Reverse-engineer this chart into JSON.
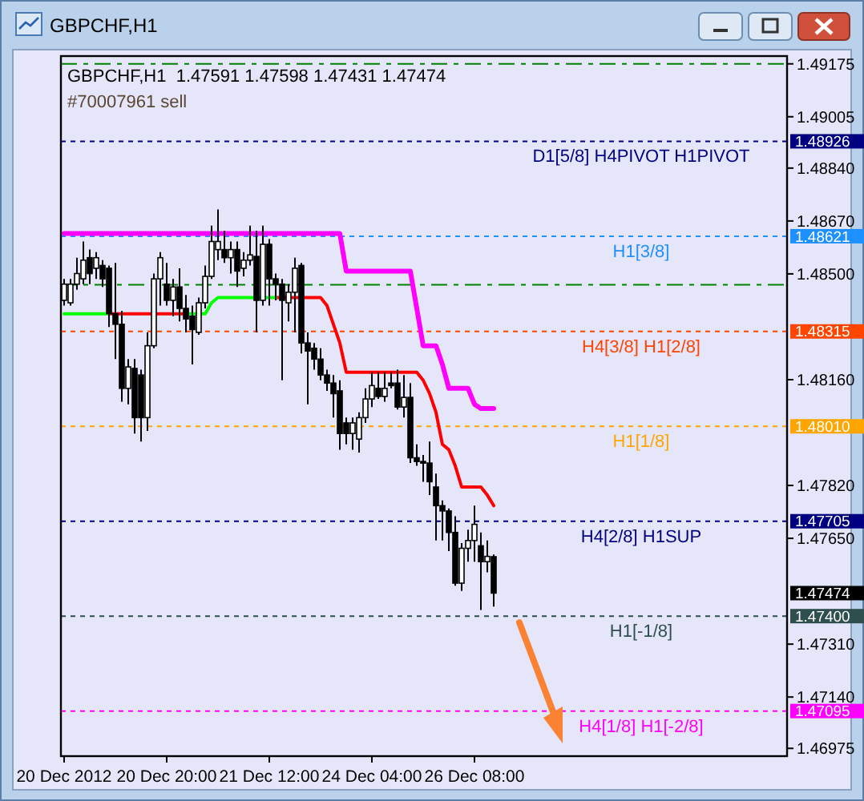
{
  "chart_data": {
    "type": "candlestick",
    "title": "GBPCHF,H1  1.47591 1.47598 1.47431 1.47474",
    "subtitle": "GBPCHF,H1",
    "categories": [
      "20 Dec 2012",
      null,
      null,
      null,
      null,
      null,
      null,
      null,
      null,
      null,
      null,
      null,
      null,
      null,
      null,
      null,
      "20 Dec 20:00",
      null,
      null,
      null,
      null,
      null,
      null,
      null,
      null,
      null,
      null,
      null,
      null,
      null,
      null,
      null,
      "21 Dec 12:00",
      null,
      null,
      null,
      null,
      null,
      null,
      null,
      null,
      null,
      null,
      null,
      null,
      null,
      null,
      null,
      "24 Dec 04:00",
      null,
      null,
      null,
      null,
      null,
      null,
      null,
      null,
      null,
      null,
      null,
      null,
      null,
      null,
      null,
      "26 Dec 08:00",
      null,
      null,
      null
    ],
    "ohlc": [
      [
        1.48415,
        1.48484,
        1.48398,
        1.48467
      ],
      [
        1.48407,
        1.48484,
        1.48398,
        1.48467
      ],
      [
        1.48467,
        1.48552,
        1.48449,
        1.48501
      ],
      [
        1.48484,
        1.48604,
        1.48467,
        1.48544
      ],
      [
        1.48552,
        1.48578,
        1.48467,
        1.48501
      ],
      [
        1.48518,
        1.4857,
        1.48484,
        1.48552
      ],
      [
        1.48527,
        1.48544,
        1.48458,
        1.48484
      ],
      [
        1.48518,
        1.48527,
        1.48329,
        1.48372
      ],
      [
        1.48372,
        1.48535,
        1.48226,
        1.48338
      ],
      [
        1.48338,
        1.48381,
        1.48089,
        1.48132
      ],
      [
        1.48132,
        1.48226,
        1.48081,
        1.48201
      ],
      [
        1.48196,
        1.48226,
        1.47987,
        1.48038
      ],
      [
        1.48175,
        1.48192,
        1.47961,
        1.48038
      ],
      [
        1.48038,
        1.48312,
        1.47995,
        1.48269
      ],
      [
        1.48269,
        1.48501,
        1.48261,
        1.48484
      ],
      [
        1.48484,
        1.4857,
        1.48398,
        1.48552
      ],
      [
        1.48467,
        1.48535,
        1.48398,
        1.48415
      ],
      [
        1.48415,
        1.48484,
        1.48364,
        1.48458
      ],
      [
        1.48458,
        1.48518,
        1.48347,
        1.48389
      ],
      [
        1.48389,
        1.48432,
        1.48312,
        1.48355
      ],
      [
        1.48364,
        1.48398,
        1.48209,
        1.48321
      ],
      [
        1.48312,
        1.48424,
        1.48304,
        1.48407
      ],
      [
        1.48407,
        1.48527,
        1.48389,
        1.48492
      ],
      [
        1.48492,
        1.48655,
        1.48484,
        1.48604
      ],
      [
        1.48578,
        1.48707,
        1.48544,
        1.48604
      ],
      [
        1.48578,
        1.48638,
        1.48535,
        1.48552
      ],
      [
        1.48552,
        1.48604,
        1.48501,
        1.48578
      ],
      [
        1.48578,
        1.48604,
        1.48458,
        1.48509
      ],
      [
        1.48518,
        1.4857,
        1.48492,
        1.48544
      ],
      [
        1.48544,
        1.48655,
        1.48527,
        1.48561
      ],
      [
        1.48556,
        1.48638,
        1.48312,
        1.48415
      ],
      [
        1.48415,
        1.48655,
        1.48398,
        1.48595
      ],
      [
        1.48595,
        1.48612,
        1.48398,
        1.48484
      ],
      [
        1.48484,
        1.48501,
        1.48415,
        1.48467
      ],
      [
        1.48467,
        1.48484,
        1.48158,
        1.48415
      ],
      [
        1.48407,
        1.48467,
        1.48347,
        1.48441
      ],
      [
        1.48441,
        1.48552,
        1.48312,
        1.48518
      ],
      [
        1.48527,
        1.48535,
        1.48244,
        1.48278
      ],
      [
        1.48278,
        1.48312,
        1.48081,
        1.48252
      ],
      [
        1.48261,
        1.48278,
        1.48192,
        1.48226
      ],
      [
        1.48226,
        1.48261,
        1.48158,
        1.48175
      ],
      [
        1.48175,
        1.48192,
        1.48124,
        1.48149
      ],
      [
        1.48149,
        1.48175,
        1.48038,
        1.48115
      ],
      [
        1.48124,
        1.48158,
        1.47935,
        1.47987
      ],
      [
        1.48021,
        1.48038,
        1.47952,
        1.47987
      ],
      [
        1.47987,
        1.48038,
        1.47935,
        1.48021
      ],
      [
        1.47969,
        1.48055,
        1.47926,
        1.48038
      ],
      [
        1.48038,
        1.48132,
        1.48021,
        1.48098
      ],
      [
        1.48098,
        1.48184,
        1.48072,
        1.48141
      ],
      [
        1.48132,
        1.48184,
        1.48098,
        1.48106
      ],
      [
        1.48106,
        1.48184,
        1.48089,
        1.48132
      ],
      [
        1.48149,
        1.48184,
        1.48132,
        1.48141
      ],
      [
        1.48149,
        1.48192,
        1.48064,
        1.48072
      ],
      [
        1.48072,
        1.48175,
        1.48038,
        1.48103
      ],
      [
        1.48103,
        1.48149,
        1.47892,
        1.47909
      ],
      [
        1.47909,
        1.47952,
        1.47883,
        1.47897
      ],
      [
        1.47897,
        1.47918,
        1.47832,
        1.47892
      ],
      [
        1.47892,
        1.47961,
        1.47789,
        1.47832
      ],
      [
        1.47815,
        1.47858,
        1.47643,
        1.47755
      ],
      [
        1.47755,
        1.47772,
        1.47643,
        1.47738
      ],
      [
        1.47738,
        1.47746,
        1.47609,
        1.47669
      ],
      [
        1.47669,
        1.47721,
        1.47498,
        1.47506
      ],
      [
        1.47506,
        1.47635,
        1.47481,
        1.47618
      ],
      [
        1.47618,
        1.47678,
        1.47575,
        1.47643
      ],
      [
        1.47643,
        1.47755,
        1.47575,
        1.47695
      ],
      [
        1.47626,
        1.47669,
        1.4742,
        1.47575
      ],
      [
        1.47575,
        1.47643,
        1.47541,
        1.47592
      ],
      [
        1.47591,
        1.47598,
        1.47431,
        1.47474
      ]
    ],
    "series": [
      {
        "type": "line",
        "color": "#ff0000",
        "values": [
          null,
          null,
          null,
          null,
          null,
          null,
          null,
          1.48372,
          1.48372,
          1.48372,
          1.48372,
          1.48372,
          1.48372,
          1.48372,
          1.48372,
          1.48372,
          1.48372,
          1.48372,
          1.48372,
          1.48372,
          null,
          null,
          null,
          null,
          null,
          null,
          null,
          null,
          null,
          null,
          null,
          null,
          null,
          1.48424,
          1.48424,
          1.48424,
          1.48424,
          1.48424,
          1.48424,
          1.48424,
          1.48424,
          1.48398,
          1.48338,
          1.48278,
          1.48184,
          1.48184,
          1.48184,
          1.48184,
          1.48184,
          1.48184,
          1.48184,
          1.48184,
          1.48184,
          1.48184,
          1.48184,
          1.48184,
          1.48158,
          1.48115,
          1.48055,
          1.47952,
          1.47935,
          1.47883,
          1.47815,
          1.47815,
          1.47815,
          1.47815,
          1.47789,
          1.47755
        ]
      },
      {
        "type": "line",
        "color": "#00ff00",
        "values": [
          1.48372,
          1.48372,
          1.48372,
          1.48372,
          1.48372,
          1.48372,
          1.48372,
          1.48372,
          null,
          null,
          null,
          null,
          null,
          null,
          null,
          null,
          null,
          null,
          null,
          1.48372,
          1.48372,
          1.48372,
          1.48372,
          1.48407,
          1.48424,
          1.48424,
          1.48424,
          1.48424,
          1.48424,
          1.48424,
          1.48424,
          1.48424,
          1.48424,
          1.48424,
          null,
          null,
          null,
          null,
          null,
          null,
          null,
          null,
          null,
          null,
          null,
          null,
          null,
          null,
          null,
          null,
          null,
          null,
          null,
          null,
          null,
          null,
          null,
          null,
          null,
          null,
          null,
          null,
          null,
          null,
          null,
          null,
          null,
          null
        ]
      },
      {
        "type": "line",
        "color": "#ff00ff",
        "values": [
          1.4863,
          1.4863,
          1.4863,
          1.4863,
          1.4863,
          1.4863,
          1.4863,
          1.4863,
          1.4863,
          1.4863,
          1.4863,
          1.4863,
          1.4863,
          1.4863,
          1.4863,
          1.4863,
          1.4863,
          1.4863,
          1.4863,
          1.4863,
          1.4863,
          1.4863,
          1.4863,
          1.4863,
          1.4863,
          1.4863,
          1.4863,
          1.4863,
          1.4863,
          1.4863,
          1.4863,
          1.4863,
          1.4863,
          1.4863,
          1.4863,
          1.4863,
          1.4863,
          1.4863,
          1.4863,
          1.4863,
          1.4863,
          1.4863,
          1.4863,
          1.4863,
          1.48509,
          1.48509,
          1.48509,
          1.48509,
          1.48509,
          1.48509,
          1.48509,
          1.48509,
          1.48509,
          1.48509,
          1.48509,
          1.48389,
          1.48269,
          1.48269,
          1.48269,
          1.48209,
          1.48132,
          1.48132,
          1.48132,
          1.48132,
          1.48081,
          1.48067,
          1.48067,
          1.48067
        ]
      }
    ],
    "ylim": [
      1.4695,
      1.492
    ],
    "yticks": [
      {
        "value": 1.49175,
        "label": "1.49175"
      },
      {
        "value": 1.49005,
        "label": "1.49005"
      },
      {
        "value": 1.4884,
        "label": "1.48840"
      },
      {
        "value": 1.4867,
        "label": "1.48670"
      },
      {
        "value": 1.485,
        "label": "1.48500"
      },
      {
        "value": 1.4816,
        "label": "1.48160"
      },
      {
        "value": 1.4782,
        "label": "1.47820"
      },
      {
        "value": 1.4765,
        "label": "1.47650"
      },
      {
        "value": 1.4731,
        "label": "1.47310"
      },
      {
        "value": 1.4714,
        "label": "1.47140"
      },
      {
        "value": 1.46975,
        "label": "1.46975"
      },
      {
        "value": 1.48926,
        "label": "1.48926"
      },
      {
        "value": 1.48621,
        "label": "1.48621"
      },
      {
        "value": 1.48315,
        "label": "1.48315"
      },
      {
        "value": 1.4801,
        "label": "1.48010"
      },
      {
        "value": 1.47705,
        "label": "1.47705"
      },
      {
        "value": 1.47474,
        "label": "1.47474"
      },
      {
        "value": 1.474,
        "label": "1.47400"
      },
      {
        "value": 1.47095,
        "label": "1.47095"
      }
    ],
    "ref_lines": [
      {
        "axis": "y",
        "value": 1.49175,
        "color": "#008000",
        "line_style": "dashed"
      },
      {
        "axis": "y",
        "value": 1.48465,
        "color": "#008000",
        "line_style": "dashed"
      },
      {
        "axis": "y",
        "value": 1.48926,
        "label": "D1[5/8] H4PIVOT H1PIVOT",
        "color": "#000080",
        "line_style": "dotted"
      },
      {
        "axis": "y",
        "value": 1.48621,
        "label": "H1[3/8]",
        "color": "#1e90ff",
        "line_style": "dotted"
      },
      {
        "axis": "y",
        "value": 1.48315,
        "label": "H4[3/8] H1[2/8]",
        "color": "#ff4500",
        "line_style": "dotted"
      },
      {
        "axis": "y",
        "value": 1.4801,
        "label": "H1[1/8]",
        "color": "#ffa500",
        "line_style": "dotted"
      },
      {
        "axis": "y",
        "value": 1.47705,
        "label": "H4[2/8] H1SUP",
        "color": "#000080",
        "line_style": "dotted"
      },
      {
        "axis": "y",
        "value": 1.474,
        "label": "H1[-1/8]",
        "color": "#2f4f4f",
        "line_style": "dotted"
      },
      {
        "axis": "y",
        "value": 1.47095,
        "label": "H4[1/8] H1[-2/8]",
        "color": "#ff00ff",
        "line_style": "dotted"
      }
    ],
    "annotations": [
      "#70007961 sell"
    ]
  }
}
